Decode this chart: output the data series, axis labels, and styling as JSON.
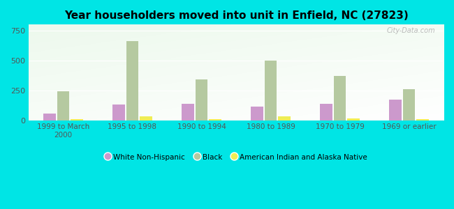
{
  "title": "Year householders moved into unit in Enfield, NC (27823)",
  "categories": [
    "1999 to March\n2000",
    "1995 to 1998",
    "1990 to 1994",
    "1980 to 1989",
    "1970 to 1979",
    "1969 or earlier"
  ],
  "white_non_hispanic": [
    55,
    130,
    140,
    115,
    140,
    175
  ],
  "black": [
    240,
    660,
    340,
    500,
    370,
    258
  ],
  "american_indian": [
    10,
    30,
    10,
    35,
    15,
    10
  ],
  "white_color": "#cc99cc",
  "black_color": "#b5c9a0",
  "indian_color": "#eeee55",
  "ylim": [
    0,
    800
  ],
  "yticks": [
    0,
    250,
    500,
    750
  ],
  "outer_bg": "#00e5e5",
  "watermark": "City-Data.com",
  "bar_width": 0.18
}
